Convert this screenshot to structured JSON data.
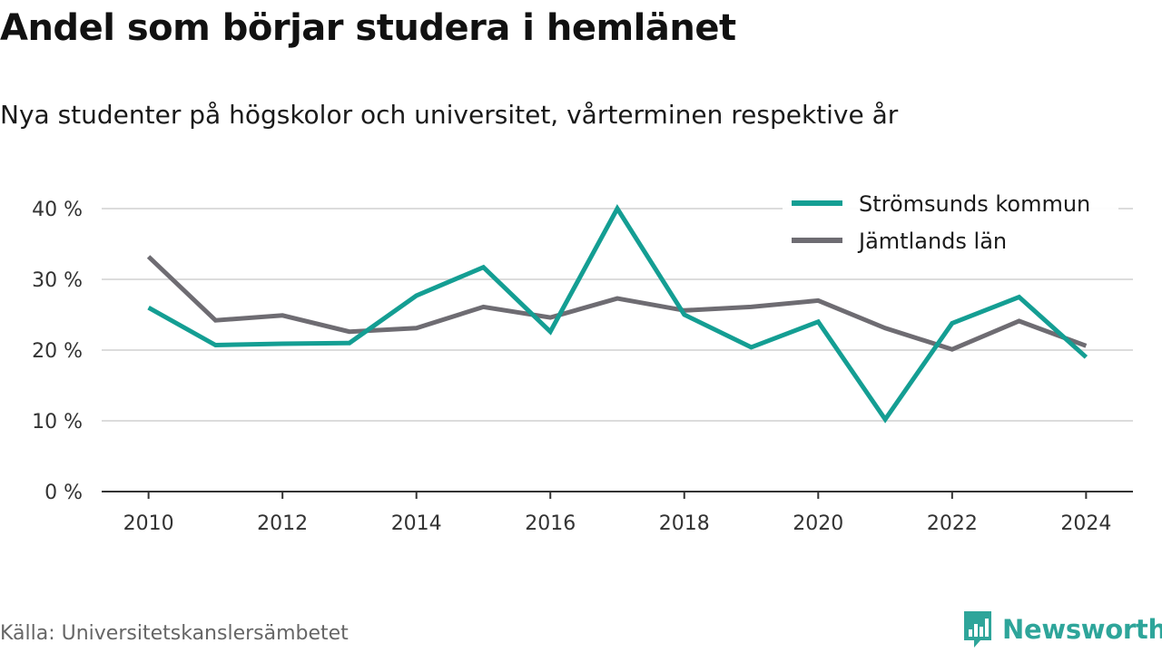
{
  "chart_data": {
    "type": "line",
    "title": "Andel som börjar studera i hemlänet",
    "subtitle": "Nya studenter på högskolor och universitet, vårterminen respektive år",
    "x": [
      2010,
      2011,
      2012,
      2013,
      2014,
      2015,
      2016,
      2017,
      2018,
      2019,
      2020,
      2021,
      2022,
      2023,
      2024
    ],
    "x_ticks": [
      2010,
      2012,
      2014,
      2016,
      2018,
      2020,
      2022,
      2024
    ],
    "x_tick_labels": [
      "2010",
      "2012",
      "2014",
      "2016",
      "2018",
      "2020",
      "2022",
      "2024"
    ],
    "y_ticks": [
      0,
      10,
      20,
      30,
      40
    ],
    "y_tick_labels": [
      "0 %",
      "10 %",
      "20 %",
      "30 %",
      "40 %"
    ],
    "ylim": [
      0,
      40
    ],
    "xlim": [
      2009.3,
      2024.7
    ],
    "grid": true,
    "legend_position": "top-right",
    "series": [
      {
        "name": "Strömsunds kommun",
        "color": "#149e93",
        "values": [
          26.0,
          20.7,
          20.9,
          21.0,
          27.7,
          31.7,
          22.6,
          40.0,
          25.0,
          20.4,
          24.0,
          10.2,
          23.8,
          27.5,
          19.0
        ]
      },
      {
        "name": "Jämtlands län",
        "color": "#6e6c72",
        "values": [
          33.2,
          24.2,
          24.9,
          22.6,
          23.1,
          26.1,
          24.6,
          27.3,
          25.6,
          26.1,
          27.0,
          23.1,
          20.1,
          24.1,
          20.6
        ]
      }
    ]
  },
  "footer": {
    "source": "Källa: Universitetskanslersämbetet",
    "brand": "Newsworthy",
    "brand_icon": "bar-chart-speech-bubble-icon",
    "brand_color": "#2ea59a"
  }
}
